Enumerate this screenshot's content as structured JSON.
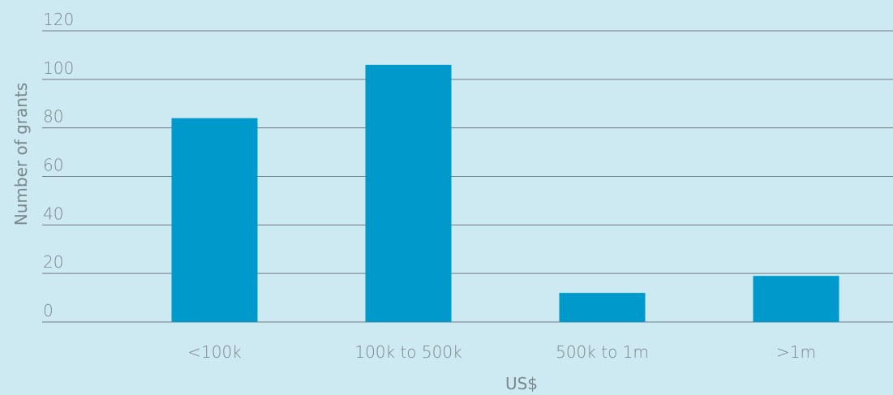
{
  "chart_data": {
    "type": "bar",
    "categories": [
      "<100k",
      "100k to 500k",
      "500k to 1m",
      ">1m"
    ],
    "values": [
      84,
      106,
      12,
      19
    ],
    "xlabel": "US$",
    "ylabel": "Number of grants",
    "ylim": [
      0,
      120
    ],
    "yticks": [
      0,
      20,
      40,
      60,
      80,
      100,
      120
    ],
    "grid": true,
    "legend": "none",
    "colors": {
      "background": "#cde9f1",
      "bar": "#0099cc",
      "gridline": "#6f7d82",
      "text": "#7a878c"
    }
  }
}
